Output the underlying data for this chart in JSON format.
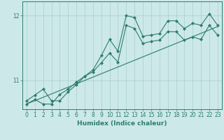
{
  "xlabel": "Humidex (Indice chaleur)",
  "background_color": "#cce8e8",
  "line_color": "#2d7d6e",
  "grid_color": "#aacfcf",
  "xlim": [
    -0.5,
    23.5
  ],
  "ylim": [
    10.55,
    12.22
  ],
  "yticks": [
    11,
    12
  ],
  "xticks": [
    0,
    1,
    2,
    3,
    4,
    5,
    6,
    7,
    8,
    9,
    10,
    11,
    12,
    13,
    14,
    15,
    16,
    17,
    18,
    19,
    20,
    21,
    22,
    23
  ],
  "line1_x": [
    0,
    1,
    2,
    3,
    4,
    5,
    6,
    7,
    8,
    9,
    10,
    11,
    12,
    13,
    14,
    15,
    16,
    17,
    18,
    19,
    20,
    21,
    22,
    23
  ],
  "line1_y": [
    10.68,
    10.77,
    10.86,
    10.68,
    10.68,
    10.82,
    10.93,
    11.06,
    11.16,
    11.38,
    11.63,
    11.45,
    12.0,
    11.97,
    11.68,
    11.7,
    11.72,
    11.92,
    11.92,
    11.8,
    11.88,
    11.85,
    12.03,
    11.85
  ],
  "line2_x": [
    0,
    23
  ],
  "line2_y": [
    10.63,
    11.83
  ],
  "line3_x": [
    0,
    1,
    2,
    3,
    4,
    5,
    6,
    7,
    8,
    9,
    10,
    11,
    12,
    13,
    14,
    15,
    16,
    17,
    18,
    19,
    20,
    21,
    22,
    23
  ],
  "line3_y": [
    10.63,
    10.7,
    10.63,
    10.63,
    10.78,
    10.86,
    10.97,
    11.06,
    11.13,
    11.27,
    11.42,
    11.28,
    11.85,
    11.8,
    11.57,
    11.6,
    11.62,
    11.75,
    11.75,
    11.62,
    11.67,
    11.63,
    11.85,
    11.7
  ]
}
